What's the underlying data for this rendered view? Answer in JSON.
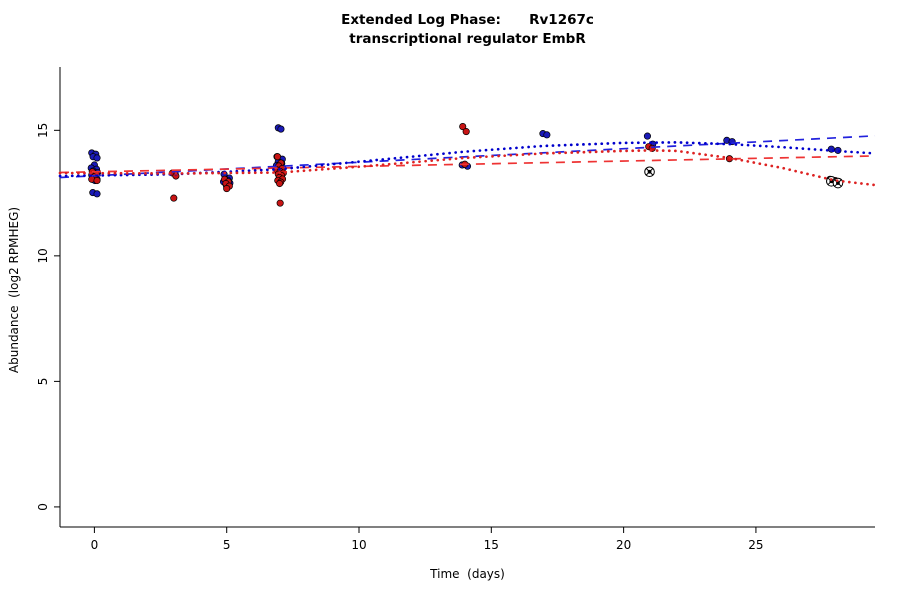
{
  "title": {
    "line1": "Extended Log Phase:      Rv1267c",
    "line2": "transcriptional regulator EmbR"
  },
  "chart_data": {
    "type": "scatter",
    "title": "Extended Log Phase: Rv1267c — transcriptional regulator EmbR",
    "xlabel": "Time  (days)",
    "ylabel": "Abundance  (log2 RPMHEG)",
    "xlim": [
      -1.3,
      29.5
    ],
    "ylim": [
      -0.8,
      18
    ],
    "xticks": [
      0,
      5,
      10,
      15,
      20,
      25
    ],
    "yticks": [
      0,
      5,
      10,
      15
    ],
    "grid": false,
    "legend": "none",
    "series": [
      {
        "name": "condition-blue",
        "color": "#1a1ab8",
        "marker": "filled-circle",
        "points": [
          [
            -0.1,
            14.1
          ],
          [
            0.05,
            14.05
          ],
          [
            -0.05,
            13.95
          ],
          [
            0.1,
            13.9
          ],
          [
            0,
            13.62
          ],
          [
            -0.12,
            13.5
          ],
          [
            0.08,
            13.45
          ],
          [
            -0.05,
            13.38
          ],
          [
            0.12,
            13.32
          ],
          [
            0,
            13.28
          ],
          [
            -0.1,
            13.22
          ],
          [
            0.06,
            13.18
          ],
          [
            -0.04,
            13.12
          ],
          [
            0.1,
            13.05
          ],
          [
            0.02,
            13.0
          ],
          [
            -0.06,
            12.52
          ],
          [
            0.1,
            12.47
          ],
          [
            3.05,
            13.28
          ],
          [
            4.9,
            13.25
          ],
          [
            5.1,
            13.1
          ],
          [
            4.95,
            13.05
          ],
          [
            5.05,
            13.0
          ],
          [
            4.88,
            12.95
          ],
          [
            5.12,
            12.9
          ],
          [
            4.97,
            12.85
          ],
          [
            5.03,
            12.8
          ],
          [
            5.0,
            12.75
          ],
          [
            6.95,
            15.1
          ],
          [
            7.05,
            15.05
          ],
          [
            6.9,
            13.95
          ],
          [
            7.1,
            13.85
          ],
          [
            6.95,
            13.75
          ],
          [
            7.08,
            13.68
          ],
          [
            6.88,
            13.6
          ],
          [
            7.0,
            13.55
          ],
          [
            7.12,
            13.5
          ],
          [
            6.93,
            13.45
          ],
          [
            7.05,
            13.4
          ],
          [
            6.98,
            13.35
          ],
          [
            13.9,
            13.62
          ],
          [
            14.1,
            13.57
          ],
          [
            16.95,
            14.87
          ],
          [
            17.1,
            14.82
          ],
          [
            20.9,
            14.77
          ],
          [
            21.1,
            14.45
          ],
          [
            23.9,
            14.6
          ],
          [
            24.1,
            14.55
          ],
          [
            27.85,
            14.25
          ],
          [
            28.1,
            14.2
          ]
        ]
      },
      {
        "name": "condition-red",
        "color": "#c81414",
        "marker": "filled-circle",
        "points": [
          [
            -0.08,
            13.35
          ],
          [
            0.07,
            13.25
          ],
          [
            0.0,
            13.15
          ],
          [
            -0.1,
            13.05
          ],
          [
            0.1,
            13.0
          ],
          [
            2.95,
            13.3
          ],
          [
            3.08,
            13.18
          ],
          [
            3.0,
            12.3
          ],
          [
            4.92,
            13.05
          ],
          [
            5.06,
            12.95
          ],
          [
            4.97,
            12.88
          ],
          [
            5.1,
            12.78
          ],
          [
            5.0,
            12.68
          ],
          [
            6.92,
            13.95
          ],
          [
            7.05,
            13.7
          ],
          [
            6.97,
            13.58
          ],
          [
            7.1,
            13.48
          ],
          [
            6.9,
            13.42
          ],
          [
            7.02,
            13.36
          ],
          [
            7.14,
            13.3
          ],
          [
            6.95,
            13.25
          ],
          [
            7.07,
            13.2
          ],
          [
            6.99,
            13.12
          ],
          [
            7.11,
            13.06
          ],
          [
            6.93,
            13.0
          ],
          [
            7.04,
            12.94
          ],
          [
            7.0,
            12.88
          ],
          [
            7.02,
            12.1
          ],
          [
            13.92,
            15.15
          ],
          [
            14.05,
            14.95
          ],
          [
            14.0,
            13.65
          ],
          [
            20.95,
            14.35
          ],
          [
            21.08,
            14.28
          ],
          [
            24.0,
            13.87
          ],
          [
            27.8,
            13.05
          ],
          [
            28.0,
            13.0
          ],
          [
            28.15,
            12.95
          ]
        ]
      },
      {
        "name": "flagged-outliers",
        "color": "#000000",
        "marker": "circle-x",
        "points": [
          [
            20.98,
            13.35
          ],
          [
            27.85,
            12.97
          ],
          [
            28.1,
            12.9
          ]
        ]
      }
    ],
    "trend_lines": [
      {
        "name": "blue-linear-fit",
        "color": "#2222dd",
        "style": "dashed",
        "points": [
          [
            -1.3,
            13.12
          ],
          [
            29.5,
            14.78
          ]
        ]
      },
      {
        "name": "red-linear-fit",
        "color": "#ee3333",
        "style": "dashed",
        "points": [
          [
            -1.3,
            13.32
          ],
          [
            29.5,
            13.98
          ]
        ]
      },
      {
        "name": "blue-smooth-fit",
        "color": "#0000cc",
        "style": "dotted",
        "points": [
          [
            -1.3,
            13.18
          ],
          [
            3,
            13.25
          ],
          [
            7,
            13.45
          ],
          [
            10,
            13.75
          ],
          [
            14,
            14.15
          ],
          [
            17,
            14.38
          ],
          [
            20,
            14.5
          ],
          [
            22,
            14.52
          ],
          [
            24,
            14.45
          ],
          [
            26,
            14.33
          ],
          [
            28,
            14.18
          ],
          [
            29.5,
            14.08
          ]
        ]
      },
      {
        "name": "red-smooth-fit",
        "color": "#dd2222",
        "style": "dotted",
        "points": [
          [
            -1.3,
            13.3
          ],
          [
            3,
            13.28
          ],
          [
            7,
            13.32
          ],
          [
            10,
            13.55
          ],
          [
            14,
            13.9
          ],
          [
            17,
            14.08
          ],
          [
            20,
            14.18
          ],
          [
            21,
            14.2
          ],
          [
            22,
            14.18
          ],
          [
            24,
            13.9
          ],
          [
            26,
            13.5
          ],
          [
            28,
            13.0
          ],
          [
            29.5,
            12.82
          ]
        ]
      }
    ]
  }
}
